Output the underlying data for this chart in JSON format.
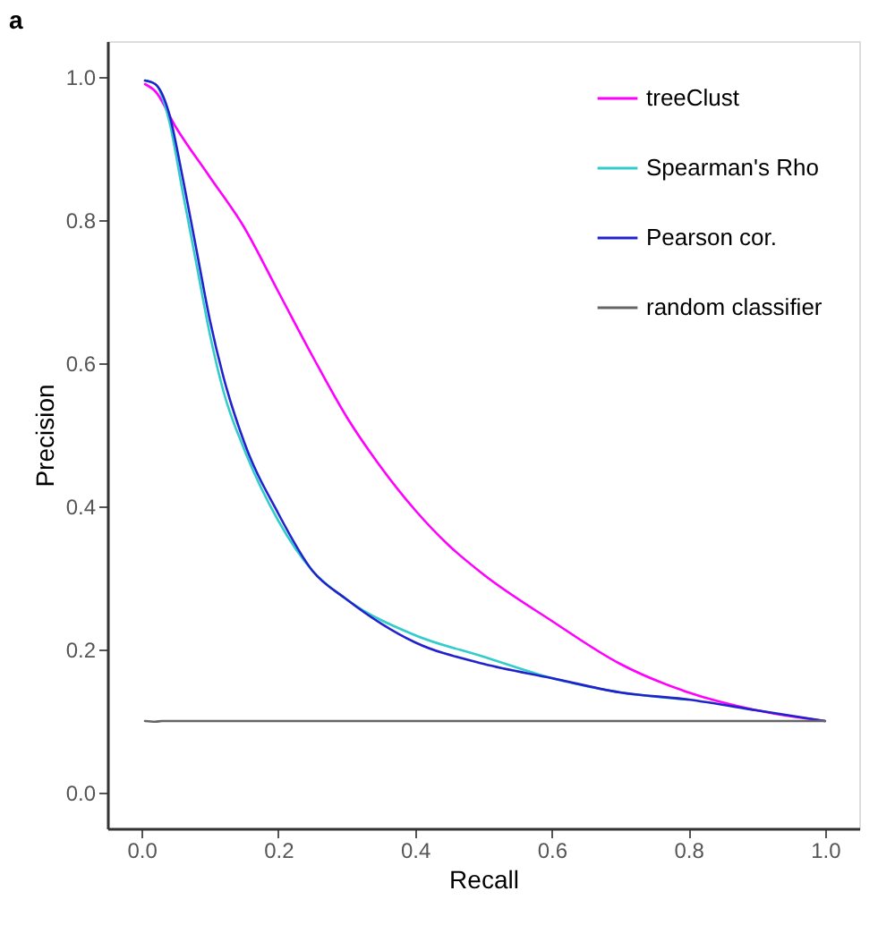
{
  "chart_data": {
    "type": "line",
    "title": "a",
    "xlabel": "Recall",
    "ylabel": "Precision",
    "xlim": [
      -0.05,
      1.05
    ],
    "ylim": [
      -0.05,
      1.05
    ],
    "xticks": [
      {
        "value": 0,
        "label": "0.0"
      },
      0.2,
      0.4,
      0.6,
      0.8,
      {
        "value": 1,
        "label": "1.0"
      }
    ],
    "yticks": [
      {
        "value": 0,
        "label": "0.0"
      },
      0.2,
      0.4,
      0.6,
      0.8,
      {
        "value": 1,
        "label": "1.0"
      }
    ],
    "grid": false,
    "legend": "top right",
    "marker": "none",
    "line_style": "solid",
    "series": [
      {
        "name": "treeClust",
        "color": "#ff00ff",
        "x": [
          0.005,
          0.02,
          0.05,
          0.1,
          0.15,
          0.2,
          0.25,
          0.3,
          0.35,
          0.4,
          0.45,
          0.5,
          0.6,
          0.7,
          0.8,
          0.9,
          1.0
        ],
        "values": [
          0.99,
          0.98,
          0.93,
          0.86,
          0.79,
          0.7,
          0.61,
          0.525,
          0.455,
          0.395,
          0.345,
          0.305,
          0.24,
          0.18,
          0.14,
          0.115,
          0.1
        ]
      },
      {
        "name": "Spearman's Rho",
        "color": "#33cccc",
        "x": [
          0.005,
          0.02,
          0.04,
          0.06,
          0.08,
          0.1,
          0.12,
          0.15,
          0.2,
          0.25,
          0.3,
          0.4,
          0.5,
          0.6,
          0.7,
          0.8
        ],
        "values": [
          0.995,
          0.99,
          0.94,
          0.84,
          0.74,
          0.64,
          0.56,
          0.48,
          0.38,
          0.31,
          0.27,
          0.22,
          0.19,
          0.16,
          0.14,
          0.13
        ]
      },
      {
        "name": "Pearson cor.",
        "color": "#2222cc",
        "x": [
          0.005,
          0.02,
          0.04,
          0.06,
          0.08,
          0.1,
          0.12,
          0.15,
          0.2,
          0.25,
          0.3,
          0.4,
          0.5,
          0.6,
          0.7,
          0.8,
          0.9,
          1.0
        ],
        "values": [
          0.995,
          0.99,
          0.95,
          0.86,
          0.76,
          0.66,
          0.58,
          0.49,
          0.39,
          0.31,
          0.27,
          0.21,
          0.18,
          0.16,
          0.14,
          0.13,
          0.115,
          0.1
        ]
      },
      {
        "name": "random classifier",
        "color": "#666666",
        "x": [
          0.005,
          0.02,
          0.03,
          0.05,
          0.5,
          1.0
        ],
        "values": [
          0.1,
          0.099,
          0.1,
          0.1,
          0.1,
          0.1
        ]
      }
    ]
  }
}
